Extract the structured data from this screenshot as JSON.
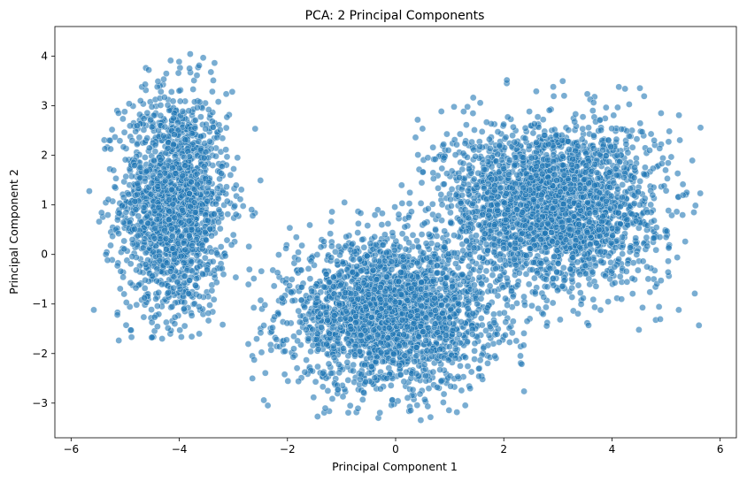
{
  "chart_data": {
    "type": "scatter",
    "title": "PCA: 2 Principal Components",
    "xlabel": "Principal Component 1",
    "ylabel": "Principal Component 2",
    "xlim": [
      -6.3,
      6.3
    ],
    "ylim": [
      -3.7,
      4.6
    ],
    "xticks": [
      -6,
      -4,
      -2,
      0,
      2,
      4,
      6
    ],
    "yticks": [
      -3,
      -2,
      -1,
      0,
      1,
      2,
      3,
      4
    ],
    "grid": false,
    "marker_color": "#1f77b4",
    "marker_edge_color": "#ffffff",
    "marker_alpha": 0.6,
    "clusters": [
      {
        "center": [
          -4.1,
          1.0
        ],
        "spread": [
          0.5,
          1.15
        ],
        "count": 1700,
        "range_x": [
          -5.7,
          -2.4
        ],
        "range_y": [
          -1.8,
          4.3
        ]
      },
      {
        "center": [
          -0.1,
          -1.2
        ],
        "spread": [
          0.95,
          0.75
        ],
        "count": 2400,
        "range_x": [
          -2.9,
          3.0
        ],
        "range_y": [
          -3.35,
          1.4
        ]
      },
      {
        "center": [
          2.9,
          1.0
        ],
        "spread": [
          1.0,
          0.85
        ],
        "count": 2600,
        "range_x": [
          0.0,
          5.7
        ],
        "range_y": [
          -1.6,
          3.6
        ]
      }
    ]
  }
}
